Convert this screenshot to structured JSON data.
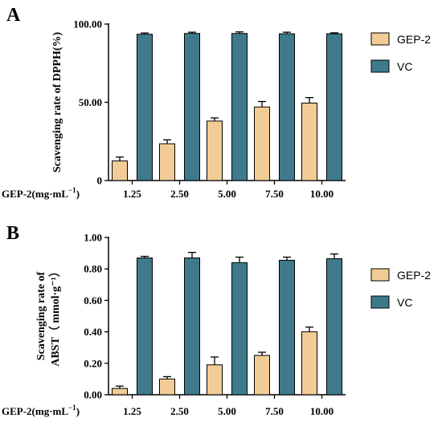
{
  "colors": {
    "gep2": "#F2CC96",
    "vc": "#3F7A8C",
    "axis": "#000000"
  },
  "chart_data": [
    {
      "type": "bar",
      "panel_label": "A",
      "ylabel": "Scavenging rate of DPPH(%)",
      "ylabel_lines": [
        "Scavenging rate of DPPH(%)"
      ],
      "xlabel": "GEP-2(mg·mL",
      "xlabel_sup": "−1",
      "xlabel_end": ")",
      "categories": [
        "1.25",
        "2.50",
        "5.00",
        "7.50",
        "10.00"
      ],
      "ylim": [
        0,
        100
      ],
      "yticks": [
        0,
        50,
        100
      ],
      "ytick_labels": [
        "0",
        "50.00",
        "100.00"
      ],
      "grid": false,
      "legend_position": "right",
      "series": [
        {
          "name": "GEP-2",
          "color_key": "gep2",
          "values": [
            12.5,
            23.5,
            38.0,
            47.0,
            49.5
          ],
          "errors": [
            2.5,
            2.5,
            2.0,
            3.5,
            3.5
          ]
        },
        {
          "name": "VC",
          "color_key": "vc",
          "values": [
            93.5,
            94.0,
            94.0,
            93.8,
            93.8
          ],
          "errors": [
            0.8,
            0.8,
            1.0,
            1.0,
            0.6
          ]
        }
      ]
    },
    {
      "type": "bar",
      "panel_label": "B",
      "ylabel": "Scavenging rate of ABST（ mmol·g⁻¹）",
      "ylabel_lines": [
        "Scavenging rate of",
        "ABST（ mmol·g⁻¹）"
      ],
      "xlabel": "GEP-2(mg·mL",
      "xlabel_sup": "−1",
      "xlabel_end": ")",
      "categories": [
        "1.25",
        "2.50",
        "5.00",
        "7.50",
        "10.00"
      ],
      "ylim": [
        0,
        1.0
      ],
      "yticks": [
        0,
        0.2,
        0.4,
        0.6,
        0.8,
        1.0
      ],
      "ytick_labels": [
        "0.00",
        "0.20",
        "0.40",
        "0.60",
        "0.80",
        "1.00"
      ],
      "grid": false,
      "legend_position": "right",
      "series": [
        {
          "name": "GEP-2",
          "color_key": "gep2",
          "values": [
            0.04,
            0.1,
            0.19,
            0.25,
            0.4
          ],
          "errors": [
            0.015,
            0.015,
            0.05,
            0.02,
            0.03
          ]
        },
        {
          "name": "VC",
          "color_key": "vc",
          "values": [
            0.87,
            0.87,
            0.84,
            0.855,
            0.865
          ],
          "errors": [
            0.01,
            0.035,
            0.035,
            0.02,
            0.03
          ]
        }
      ]
    }
  ]
}
